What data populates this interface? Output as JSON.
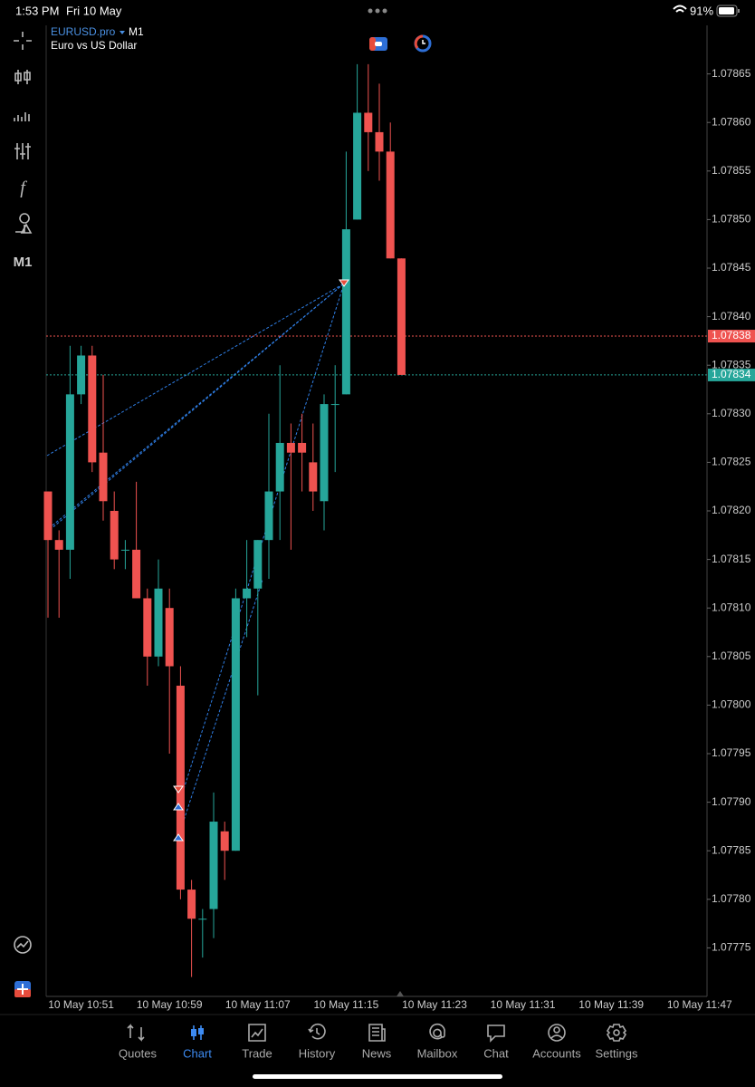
{
  "status_bar": {
    "time": "1:53 PM",
    "date": "Fri 10 May",
    "battery": "91%"
  },
  "toolbar": {
    "timeframe": "M1"
  },
  "chart_data": {
    "type": "candlestick",
    "symbol": "EURUSD.pro",
    "timeframe": "M1",
    "description": "Euro vs US Dollar",
    "up_color": "#26a69a",
    "down_color": "#ef5350",
    "open": [
      1.07822,
      1.07817,
      1.07816,
      1.07832,
      1.07836,
      1.07826,
      1.0782,
      1.07816,
      1.07816,
      1.07811,
      1.07805,
      1.0781,
      1.07802,
      1.07781,
      1.07778,
      1.07779,
      1.07787,
      1.07785,
      1.07811,
      1.07812,
      1.07817,
      1.07822,
      1.07827,
      1.07827,
      1.07825,
      1.07821,
      1.07831,
      1.07832,
      1.0785,
      1.07861,
      1.07859,
      1.07857,
      1.07846
    ],
    "high": [
      1.07822,
      1.07818,
      1.07837,
      1.07837,
      1.07837,
      1.07834,
      1.07822,
      1.07817,
      1.07823,
      1.07812,
      1.07815,
      1.07812,
      1.07804,
      1.07782,
      1.07779,
      1.07791,
      1.07788,
      1.07812,
      1.07817,
      1.07817,
      1.0783,
      1.07835,
      1.07829,
      1.0783,
      1.07829,
      1.07832,
      1.07835,
      1.07857,
      1.07866,
      1.07866,
      1.07864,
      1.0786,
      1.07846
    ],
    "low": [
      1.07809,
      1.07809,
      1.07813,
      1.07831,
      1.07824,
      1.07819,
      1.07814,
      1.07814,
      1.07811,
      1.07802,
      1.07804,
      1.07795,
      1.0778,
      1.07772,
      1.07774,
      1.07776,
      1.07782,
      1.07785,
      1.07807,
      1.07801,
      1.07813,
      1.07817,
      1.07816,
      1.07822,
      1.0782,
      1.07818,
      1.07824,
      1.07832,
      1.0785,
      1.07855,
      1.07854,
      1.07846,
      1.07834
    ],
    "close": [
      1.07817,
      1.07816,
      1.07832,
      1.07836,
      1.07825,
      1.07821,
      1.07815,
      1.07816,
      1.07811,
      1.07805,
      1.07812,
      1.07804,
      1.07781,
      1.07778,
      1.07778,
      1.07788,
      1.07785,
      1.07811,
      1.07812,
      1.07817,
      1.07822,
      1.07827,
      1.07826,
      1.07826,
      1.07822,
      1.07831,
      1.07831,
      1.07849,
      1.07861,
      1.07859,
      1.07857,
      1.07846,
      1.07834
    ],
    "x_labels": [
      "10 May 10:51",
      "10 May 10:59",
      "10 May 11:07",
      "10 May 11:15",
      "10 May 11:23",
      "10 May 11:31",
      "10 May 11:39",
      "10 May 11:47"
    ],
    "ylim": [
      1.0777,
      1.0787
    ],
    "yticks": [
      1.07775,
      {
        "value": 1.0778,
        "label": "1.07780"
      },
      1.07785,
      {
        "value": 1.0779,
        "label": "1.07790"
      },
      1.07795,
      {
        "value": 1.078,
        "label": "1.07800"
      },
      1.07805,
      {
        "value": 1.0781,
        "label": "1.07810"
      },
      1.07815,
      {
        "value": 1.0782,
        "label": "1.07820"
      },
      1.07825,
      {
        "value": 1.0783,
        "label": "1.07830"
      },
      1.07835,
      {
        "value": 1.0784,
        "label": "1.07840"
      },
      1.07845,
      {
        "value": 1.0785,
        "label": "1.07850"
      },
      1.07855,
      {
        "value": 1.0786,
        "label": "1.07860"
      },
      1.07865
    ],
    "ask_line": {
      "value": 1.07838,
      "color": "#ef5350"
    },
    "bid_line": {
      "value": 1.07834,
      "color": "#26a69a"
    }
  },
  "nav": {
    "items": [
      "Quotes",
      "Chart",
      "Trade",
      "History",
      "News",
      "Mailbox",
      "Chat",
      "Accounts",
      "Settings"
    ],
    "active": 1
  }
}
